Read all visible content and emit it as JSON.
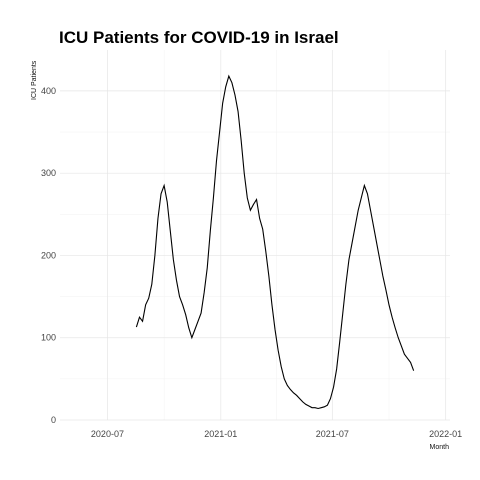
{
  "chart_data": {
    "type": "line",
    "title": "ICU Patients for COVID-19 in Israel",
    "xlabel": "Month",
    "ylabel": "ICU Patients",
    "x_ticks": [
      "2020-07",
      "2021-01",
      "2021-07",
      "2022-01"
    ],
    "y_ticks": [
      0,
      100,
      200,
      300,
      400
    ],
    "xlim": [
      "2020-04-15",
      "2022-01-08"
    ],
    "ylim": [
      0,
      440
    ],
    "grid": true,
    "series": [
      {
        "color": "#000000",
        "points": [
          [
            "2020-08-17",
            113
          ],
          [
            "2020-08-22",
            125
          ],
          [
            "2020-08-27",
            120
          ],
          [
            "2020-09-01",
            140
          ],
          [
            "2020-09-06",
            148
          ],
          [
            "2020-09-11",
            165
          ],
          [
            "2020-09-16",
            200
          ],
          [
            "2020-09-21",
            245
          ],
          [
            "2020-09-26",
            275
          ],
          [
            "2020-10-01",
            285
          ],
          [
            "2020-10-06",
            265
          ],
          [
            "2020-10-11",
            230
          ],
          [
            "2020-10-16",
            195
          ],
          [
            "2020-10-21",
            170
          ],
          [
            "2020-10-26",
            150
          ],
          [
            "2020-10-31",
            140
          ],
          [
            "2020-11-05",
            128
          ],
          [
            "2020-11-10",
            112
          ],
          [
            "2020-11-15",
            100
          ],
          [
            "2020-11-20",
            110
          ],
          [
            "2020-11-25",
            120
          ],
          [
            "2020-11-30",
            130
          ],
          [
            "2020-12-05",
            155
          ],
          [
            "2020-12-10",
            185
          ],
          [
            "2020-12-15",
            230
          ],
          [
            "2020-12-20",
            270
          ],
          [
            "2020-12-25",
            315
          ],
          [
            "2020-12-30",
            350
          ],
          [
            "2021-01-04",
            385
          ],
          [
            "2021-01-09",
            405
          ],
          [
            "2021-01-14",
            418
          ],
          [
            "2021-01-19",
            410
          ],
          [
            "2021-01-24",
            395
          ],
          [
            "2021-01-29",
            375
          ],
          [
            "2021-02-03",
            340
          ],
          [
            "2021-02-08",
            300
          ],
          [
            "2021-02-13",
            270
          ],
          [
            "2021-02-18",
            255
          ],
          [
            "2021-02-23",
            262
          ],
          [
            "2021-02-28",
            268
          ],
          [
            "2021-03-05",
            245
          ],
          [
            "2021-03-10",
            232
          ],
          [
            "2021-03-15",
            205
          ],
          [
            "2021-03-20",
            175
          ],
          [
            "2021-03-25",
            140
          ],
          [
            "2021-03-30",
            110
          ],
          [
            "2021-04-04",
            85
          ],
          [
            "2021-04-09",
            65
          ],
          [
            "2021-04-14",
            50
          ],
          [
            "2021-04-19",
            42
          ],
          [
            "2021-04-24",
            37
          ],
          [
            "2021-04-29",
            33
          ],
          [
            "2021-05-04",
            30
          ],
          [
            "2021-05-09",
            26
          ],
          [
            "2021-05-14",
            22
          ],
          [
            "2021-05-19",
            19
          ],
          [
            "2021-05-24",
            17
          ],
          [
            "2021-05-29",
            15
          ],
          [
            "2021-06-03",
            15
          ],
          [
            "2021-06-08",
            14
          ],
          [
            "2021-06-13",
            15
          ],
          [
            "2021-06-18",
            16
          ],
          [
            "2021-06-23",
            18
          ],
          [
            "2021-06-28",
            26
          ],
          [
            "2021-07-03",
            40
          ],
          [
            "2021-07-08",
            62
          ],
          [
            "2021-07-13",
            95
          ],
          [
            "2021-07-18",
            130
          ],
          [
            "2021-07-23",
            165
          ],
          [
            "2021-07-28",
            195
          ],
          [
            "2021-08-02",
            215
          ],
          [
            "2021-08-07",
            235
          ],
          [
            "2021-08-12",
            255
          ],
          [
            "2021-08-17",
            270
          ],
          [
            "2021-08-22",
            285
          ],
          [
            "2021-08-27",
            275
          ],
          [
            "2021-09-01",
            255
          ],
          [
            "2021-09-06",
            235
          ],
          [
            "2021-09-11",
            215
          ],
          [
            "2021-09-16",
            195
          ],
          [
            "2021-09-21",
            175
          ],
          [
            "2021-09-26",
            158
          ],
          [
            "2021-10-01",
            140
          ],
          [
            "2021-10-06",
            125
          ],
          [
            "2021-10-11",
            112
          ],
          [
            "2021-10-16",
            100
          ],
          [
            "2021-10-21",
            90
          ],
          [
            "2021-10-26",
            80
          ],
          [
            "2021-10-31",
            75
          ],
          [
            "2021-11-05",
            70
          ],
          [
            "2021-11-10",
            60
          ]
        ]
      }
    ]
  }
}
